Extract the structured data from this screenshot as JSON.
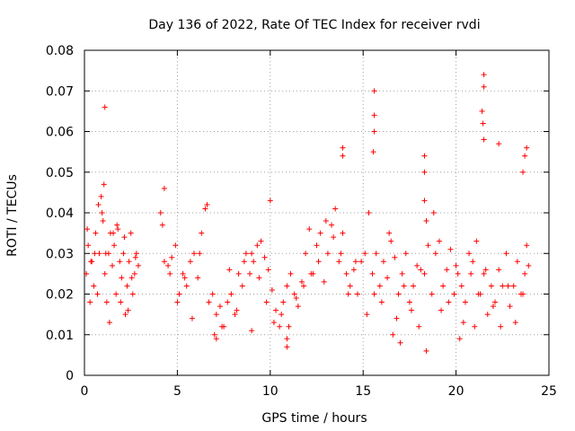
{
  "chart_data": {
    "type": "scatter",
    "title": "Day 136 of 2022, Rate Of TEC Index for receiver rvdi",
    "xlabel": "GPS time / hours",
    "ylabel": "ROTI / TECUs",
    "xlim": [
      0,
      25
    ],
    "ylim": [
      0,
      0.08
    ],
    "xticks": [
      "0",
      "5",
      "10",
      "15",
      "20",
      "25"
    ],
    "yticks": [
      "0",
      "0.01",
      "0.02",
      "0.03",
      "0.04",
      "0.05",
      "0.06",
      "0.07",
      "0.08"
    ],
    "grid": true,
    "marker": "+",
    "color": "#ff0000",
    "series": [
      {
        "x": [
          0.1,
          0.2,
          0.3,
          0.4,
          0.5,
          0.6,
          0.7,
          0.8,
          0.9,
          1.0,
          1.1,
          1.2,
          1.3,
          1.4,
          1.5,
          1.6,
          1.7,
          1.8,
          1.9,
          2.0,
          2.1,
          2.2,
          2.3,
          2.4,
          2.5,
          2.6,
          2.7,
          2.8,
          2.9,
          0.15,
          0.35,
          0.55,
          0.75,
          0.95,
          1.05,
          1.15,
          1.35,
          1.55,
          1.75,
          1.95,
          2.15,
          2.35,
          2.55,
          2.75,
          4.1,
          4.3,
          4.5,
          4.7,
          4.9,
          5.1,
          5.3,
          5.5,
          5.7,
          5.9,
          6.1,
          6.3,
          6.5,
          6.7,
          6.9,
          7.1,
          7.3,
          7.5,
          7.7,
          7.9,
          8.1,
          8.3,
          8.5,
          8.7,
          8.9,
          9.1,
          9.3,
          9.5,
          9.7,
          9.9,
          10.1,
          10.3,
          10.5,
          10.7,
          10.9,
          11.1,
          11.3,
          11.5,
          11.7,
          11.9,
          12.1,
          12.3,
          12.5,
          12.7,
          12.9,
          13.1,
          13.3,
          13.5,
          13.7,
          13.9,
          14.1,
          14.3,
          14.5,
          14.7,
          14.9,
          4.2,
          4.6,
          5.0,
          5.4,
          5.8,
          6.2,
          6.6,
          7.0,
          7.4,
          7.8,
          8.2,
          8.6,
          9.0,
          9.4,
          9.8,
          10.2,
          10.6,
          11.0,
          11.4,
          11.8,
          12.2,
          12.6,
          13.0,
          13.4,
          13.8,
          14.2,
          14.6,
          15.1,
          15.3,
          15.5,
          15.7,
          15.9,
          16.1,
          16.3,
          16.5,
          16.7,
          16.9,
          17.1,
          17.3,
          17.5,
          17.7,
          17.9,
          18.1,
          18.3,
          18.5,
          18.7,
          18.9,
          19.1,
          19.3,
          19.5,
          19.7,
          19.9,
          20.1,
          20.3,
          20.5,
          20.7,
          20.9,
          21.1,
          21.3,
          21.5,
          21.7,
          21.9,
          22.1,
          22.3,
          22.5,
          22.7,
          22.9,
          23.1,
          23.3,
          23.5,
          23.7,
          23.9,
          15.2,
          15.6,
          16.0,
          16.4,
          16.8,
          17.2,
          17.6,
          18.0,
          18.4,
          18.8,
          19.2,
          19.6,
          20.0,
          20.4,
          20.8,
          21.2,
          21.6,
          22.0,
          22.4,
          22.8,
          23.2,
          23.6,
          23.8,
          1.1,
          15.6,
          15.6,
          15.6,
          15.55,
          21.5,
          21.5,
          21.4,
          21.45,
          21.5,
          13.9,
          13.9,
          18.3,
          18.3,
          22.3,
          23.8,
          23.7,
          23.6,
          4.3,
          10.0,
          10.9,
          10.9,
          18.4,
          18.3,
          17.0,
          16.6,
          21.0,
          20.2,
          9.0,
          7.1
        ],
        "y": [
          0.025,
          0.032,
          0.018,
          0.028,
          0.022,
          0.035,
          0.02,
          0.03,
          0.044,
          0.038,
          0.025,
          0.018,
          0.03,
          0.035,
          0.027,
          0.032,
          0.02,
          0.036,
          0.028,
          0.024,
          0.03,
          0.015,
          0.022,
          0.028,
          0.035,
          0.02,
          0.025,
          0.03,
          0.027,
          0.036,
          0.028,
          0.03,
          0.042,
          0.04,
          0.047,
          0.03,
          0.013,
          0.035,
          0.037,
          0.018,
          0.034,
          0.016,
          0.024,
          0.029,
          0.04,
          0.028,
          0.027,
          0.029,
          0.032,
          0.02,
          0.025,
          0.022,
          0.028,
          0.03,
          0.024,
          0.035,
          0.041,
          0.018,
          0.02,
          0.015,
          0.017,
          0.012,
          0.018,
          0.02,
          0.015,
          0.025,
          0.022,
          0.03,
          0.025,
          0.028,
          0.032,
          0.033,
          0.029,
          0.026,
          0.021,
          0.016,
          0.012,
          0.018,
          0.022,
          0.025,
          0.02,
          0.017,
          0.023,
          0.03,
          0.036,
          0.025,
          0.032,
          0.035,
          0.023,
          0.03,
          0.037,
          0.041,
          0.028,
          0.035,
          0.025,
          0.022,
          0.026,
          0.02,
          0.028,
          0.037,
          0.025,
          0.018,
          0.024,
          0.014,
          0.03,
          0.042,
          0.01,
          0.012,
          0.026,
          0.016,
          0.028,
          0.03,
          0.024,
          0.018,
          0.013,
          0.015,
          0.012,
          0.019,
          0.022,
          0.025,
          0.028,
          0.038,
          0.034,
          0.03,
          0.02,
          0.028,
          0.03,
          0.04,
          0.025,
          0.03,
          0.022,
          0.028,
          0.024,
          0.033,
          0.029,
          0.02,
          0.025,
          0.03,
          0.018,
          0.022,
          0.027,
          0.026,
          0.025,
          0.032,
          0.02,
          0.03,
          0.033,
          0.022,
          0.026,
          0.031,
          0.02,
          0.025,
          0.022,
          0.018,
          0.03,
          0.028,
          0.033,
          0.02,
          0.025,
          0.015,
          0.022,
          0.018,
          0.026,
          0.022,
          0.03,
          0.017,
          0.022,
          0.028,
          0.02,
          0.025,
          0.027,
          0.015,
          0.02,
          0.018,
          0.035,
          0.014,
          0.022,
          0.016,
          0.012,
          0.038,
          0.04,
          0.016,
          0.018,
          0.027,
          0.013,
          0.025,
          0.02,
          0.026,
          0.017,
          0.012,
          0.022,
          0.013,
          0.02,
          0.032,
          0.066,
          0.07,
          0.064,
          0.06,
          0.055,
          0.074,
          0.071,
          0.065,
          0.062,
          0.058,
          0.056,
          0.054,
          0.054,
          0.05,
          0.057,
          0.056,
          0.054,
          0.05,
          0.046,
          0.043,
          0.007,
          0.009,
          0.006,
          0.043,
          0.008,
          0.01,
          0.012,
          0.009,
          0.011,
          0.009
        ]
      }
    ]
  }
}
